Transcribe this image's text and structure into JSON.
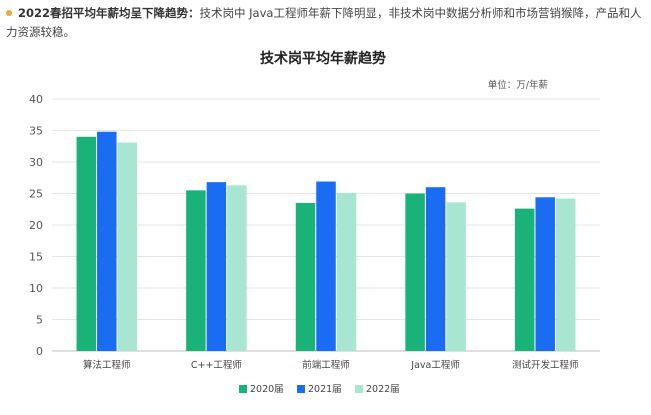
{
  "intro": {
    "heading": "2022春招平均年薪均呈下降趋势：",
    "body": "技术岗中 Java工程师年薪下降明显，非技术岗中数据分析师和市场营销猴降，产品和人力资源较稳。"
  },
  "colors": {
    "bullet": "#f0a63a",
    "series": [
      "#19b37a",
      "#1a6cf2",
      "#a9e6d2"
    ]
  },
  "chart_data": {
    "type": "bar",
    "title": "技术岗平均年薪趋势",
    "unit_label": "单位：万/年薪",
    "categories": [
      "算法工程师",
      "C++工程师",
      "前端工程师",
      "Java工程师",
      "测试开发工程师"
    ],
    "series": [
      {
        "name": "2020届",
        "values": [
          34.0,
          25.5,
          23.5,
          25.0,
          22.6
        ]
      },
      {
        "name": "2021届",
        "values": [
          34.8,
          26.8,
          26.9,
          26.0,
          24.4
        ]
      },
      {
        "name": "2022届",
        "values": [
          33.1,
          26.3,
          25.1,
          23.6,
          24.2
        ]
      }
    ],
    "ylim": [
      0,
      40
    ],
    "yticks": [
      0,
      5,
      10,
      15,
      20,
      25,
      30,
      35,
      40
    ],
    "grid": true,
    "legend_position": "bottom"
  }
}
